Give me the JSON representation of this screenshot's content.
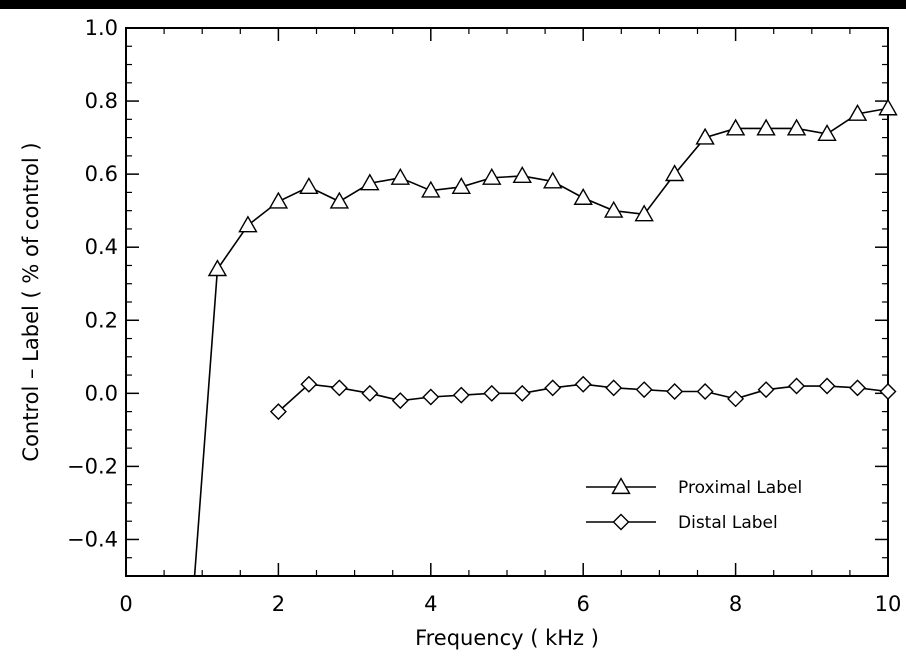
{
  "chart_data": {
    "type": "line",
    "title": "",
    "xlabel": "Frequency ( kHz )",
    "ylabel": "Control – Label ( % of control )",
    "xlim": [
      0,
      10
    ],
    "ylim": [
      -0.5,
      1.0
    ],
    "xticks": [
      0,
      2,
      4,
      6,
      8,
      10
    ],
    "yticks": [
      -0.4,
      -0.2,
      0.0,
      0.2,
      0.4,
      0.6,
      0.8,
      1.0
    ],
    "xtick_labels": [
      "0",
      "2",
      "4",
      "6",
      "8",
      "10"
    ],
    "ytick_labels": [
      "−0.4",
      "−0.2",
      "0.0",
      "0.2",
      "0.4",
      "0.6",
      "0.8",
      "1.0"
    ],
    "grid": false,
    "legend_position": "bottom-right",
    "series": [
      {
        "name": "Proximal Label",
        "marker": "triangle",
        "color": "#000000",
        "x": [
          0.9,
          1.2,
          1.6,
          2.0,
          2.4,
          2.8,
          3.2,
          3.6,
          4.0,
          4.4,
          4.8,
          5.2,
          5.6,
          6.0,
          6.4,
          6.8,
          7.2,
          7.6,
          8.0,
          8.4,
          8.8,
          9.2,
          9.6,
          10.0
        ],
        "y": [
          -0.5,
          0.34,
          0.46,
          0.525,
          0.565,
          0.525,
          0.575,
          0.59,
          0.555,
          0.565,
          0.59,
          0.595,
          0.58,
          0.535,
          0.5,
          0.49,
          0.6,
          0.7,
          0.725,
          0.725,
          0.725,
          0.71,
          0.765,
          0.78
        ],
        "marker_from_index": 1
      },
      {
        "name": "Distal Label",
        "marker": "diamond",
        "color": "#000000",
        "x": [
          2.0,
          2.4,
          2.8,
          3.2,
          3.6,
          4.0,
          4.4,
          4.8,
          5.2,
          5.6,
          6.0,
          6.4,
          6.8,
          7.2,
          7.6,
          8.0,
          8.4,
          8.8,
          9.2,
          9.6,
          10.0
        ],
        "y": [
          -0.05,
          0.025,
          0.015,
          0.0,
          -0.02,
          -0.01,
          -0.005,
          0.0,
          0.0,
          0.015,
          0.025,
          0.015,
          0.01,
          0.005,
          0.005,
          -0.015,
          0.01,
          0.02,
          0.02,
          0.015,
          0.005
        ],
        "marker_from_index": 0
      }
    ]
  }
}
